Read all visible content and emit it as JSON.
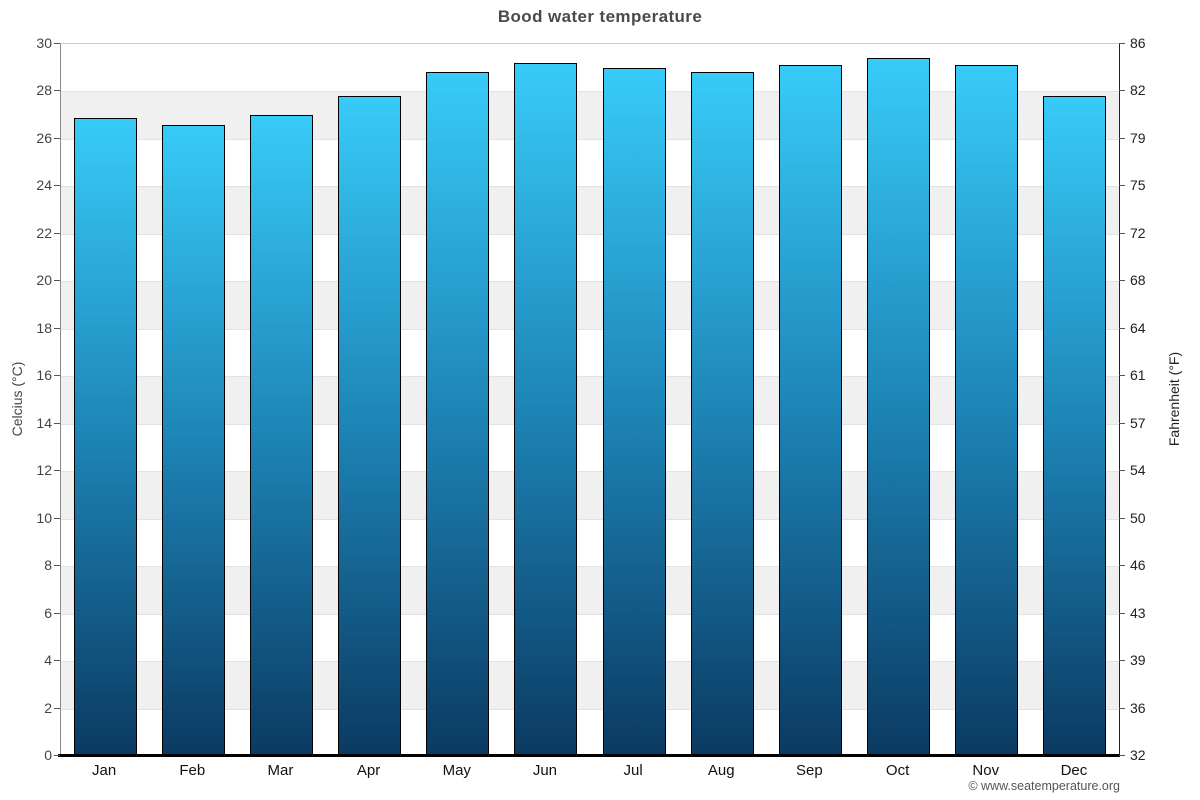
{
  "title": "Bood water temperature",
  "footer": {
    "credit": "© www.seatemperature.org"
  },
  "chart_data": {
    "type": "bar",
    "title": "Bood water temperature",
    "categories": [
      "Jan",
      "Feb",
      "Mar",
      "Apr",
      "May",
      "Jun",
      "Jul",
      "Aug",
      "Sep",
      "Oct",
      "Nov",
      "Dec"
    ],
    "values": [
      26.9,
      26.6,
      27.0,
      27.8,
      28.8,
      29.2,
      29.0,
      28.8,
      29.1,
      29.4,
      29.1,
      27.8
    ],
    "unit": "°C",
    "xlabel": "",
    "ylabel_left": "Celcius (°C)",
    "ylabel_right": "Fahrenheit (°F)",
    "ylim": [
      0,
      30
    ],
    "ytick_step_celsius": 2,
    "yticks_celsius": [
      30,
      28,
      26,
      24,
      22,
      20,
      18,
      16,
      14,
      12,
      10,
      8,
      6,
      4,
      2,
      0
    ],
    "yticks_fahrenheit": [
      86,
      82,
      79,
      75,
      72,
      68,
      64,
      61,
      57,
      54,
      50,
      46,
      43,
      39,
      36,
      32
    ],
    "legend": "none",
    "grid": "horizontal alternating bands",
    "band_colors": [
      "#ffffff",
      "#f0f0f0"
    ],
    "gridline_color": "#e2e2e2",
    "bar_gradient_top": "#38cbf8",
    "bar_gradient_mid": "#1d84b6",
    "bar_gradient_bottom": "#0b3a62",
    "bar_border_color": "#000000",
    "title_color": "#4a4a4a"
  }
}
